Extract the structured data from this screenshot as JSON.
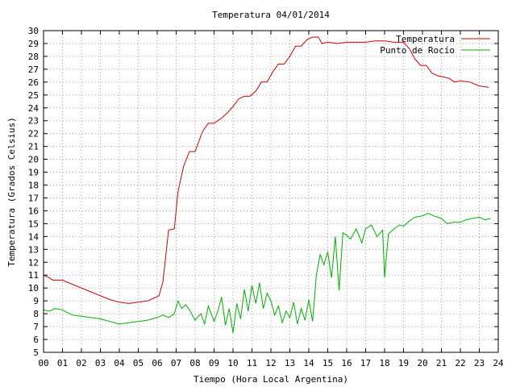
{
  "chart_data": {
    "type": "line",
    "title": "Temperatura 04/01/2014",
    "xlabel": "Tiempo (Hora Local Argentina)",
    "ylabel": "Temperatura (Grados Celsius)",
    "xlim": [
      0,
      24
    ],
    "ylim": [
      5,
      30
    ],
    "xticks": [
      "00",
      "01",
      "02",
      "03",
      "04",
      "05",
      "06",
      "07",
      "08",
      "09",
      "10",
      "11",
      "12",
      "13",
      "14",
      "15",
      "16",
      "17",
      "18",
      "19",
      "20",
      "21",
      "22",
      "23",
      "24"
    ],
    "yticks": [
      5,
      6,
      7,
      8,
      9,
      10,
      11,
      12,
      13,
      14,
      15,
      16,
      17,
      18,
      19,
      20,
      21,
      22,
      23,
      24,
      25,
      26,
      27,
      28,
      29,
      30
    ],
    "grid": true,
    "legend_position": "top-right",
    "series": [
      {
        "name": "Temperatura",
        "color": "#cc0000",
        "x": [
          0,
          0.3,
          0.5,
          1.0,
          1.5,
          2.0,
          2.5,
          3.0,
          3.5,
          4.0,
          4.5,
          5.0,
          5.5,
          5.8,
          6.1,
          6.3,
          6.6,
          6.9,
          7.1,
          7.4,
          7.7,
          8.0,
          8.4,
          8.7,
          9.0,
          9.4,
          9.7,
          10.0,
          10.3,
          10.6,
          10.9,
          11.2,
          11.5,
          11.8,
          12.1,
          12.4,
          12.7,
          13.0,
          13.3,
          13.6,
          13.9,
          14.2,
          14.5,
          14.7,
          15.0,
          15.5,
          16.0,
          16.5,
          17.0,
          17.5,
          18.0,
          18.5,
          19.0,
          19.3,
          19.6,
          19.9,
          20.2,
          20.5,
          20.8,
          21.1,
          21.4,
          21.7,
          22.0,
          22.5,
          23.0,
          23.5
        ],
        "y": [
          11.0,
          10.8,
          10.6,
          10.6,
          10.3,
          10.0,
          9.7,
          9.4,
          9.1,
          8.9,
          8.8,
          8.9,
          9.0,
          9.2,
          9.4,
          10.5,
          14.5,
          14.6,
          17.5,
          19.5,
          20.6,
          20.6,
          22.2,
          22.8,
          22.8,
          23.2,
          23.6,
          24.1,
          24.7,
          24.9,
          24.9,
          25.3,
          26.0,
          26.0,
          26.8,
          27.4,
          27.4,
          28.0,
          28.8,
          28.8,
          29.3,
          29.5,
          29.5,
          29.0,
          29.1,
          29.0,
          29.1,
          29.1,
          29.1,
          29.2,
          29.2,
          29.1,
          29.1,
          28.6,
          27.8,
          27.3,
          27.3,
          26.7,
          26.5,
          26.4,
          26.3,
          26.0,
          26.1,
          26.0,
          25.7,
          25.6
        ]
      },
      {
        "name": "Punto de Rocío",
        "color": "#00b000",
        "x": [
          0,
          0.3,
          0.6,
          1.0,
          1.5,
          2.0,
          2.5,
          3.0,
          3.5,
          4.0,
          4.5,
          5.0,
          5.5,
          6.0,
          6.3,
          6.6,
          6.9,
          7.1,
          7.3,
          7.5,
          7.7,
          8.0,
          8.3,
          8.5,
          8.7,
          9.0,
          9.2,
          9.4,
          9.6,
          9.8,
          10.0,
          10.2,
          10.4,
          10.6,
          10.8,
          11.0,
          11.2,
          11.4,
          11.6,
          11.8,
          12.0,
          12.2,
          12.4,
          12.6,
          12.8,
          13.0,
          13.2,
          13.4,
          13.6,
          13.8,
          14.0,
          14.2,
          14.4,
          14.6,
          14.8,
          15.0,
          15.2,
          15.4,
          15.6,
          15.8,
          16.0,
          16.2,
          16.5,
          16.8,
          17.0,
          17.3,
          17.6,
          17.9,
          18.0,
          18.2,
          18.5,
          18.8,
          19.0,
          19.3,
          19.6,
          20.0,
          20.3,
          20.6,
          21.0,
          21.3,
          21.6,
          22.0,
          22.3,
          22.6,
          23.0,
          23.3,
          23.6
        ],
        "y": [
          8.3,
          8.2,
          8.4,
          8.3,
          7.9,
          7.8,
          7.7,
          7.6,
          7.4,
          7.2,
          7.3,
          7.4,
          7.5,
          7.7,
          7.9,
          7.7,
          8.0,
          9.0,
          8.4,
          8.7,
          8.3,
          7.5,
          8.0,
          7.2,
          8.6,
          7.4,
          8.2,
          9.3,
          7.1,
          8.4,
          6.5,
          8.8,
          7.6,
          9.9,
          8.2,
          10.2,
          8.8,
          10.4,
          8.4,
          9.6,
          9.0,
          7.9,
          8.6,
          7.3,
          8.2,
          7.7,
          8.9,
          7.2,
          8.4,
          7.5,
          9.1,
          7.4,
          11.0,
          12.6,
          11.8,
          12.8,
          10.8,
          14.0,
          9.8,
          14.3,
          14.1,
          13.8,
          14.6,
          13.5,
          14.6,
          14.9,
          14.0,
          14.5,
          10.8,
          14.2,
          14.6,
          14.9,
          14.8,
          15.2,
          15.5,
          15.6,
          15.8,
          15.6,
          15.4,
          15.0,
          15.1,
          15.1,
          15.3,
          15.4,
          15.5,
          15.3,
          15.4
        ]
      }
    ]
  }
}
